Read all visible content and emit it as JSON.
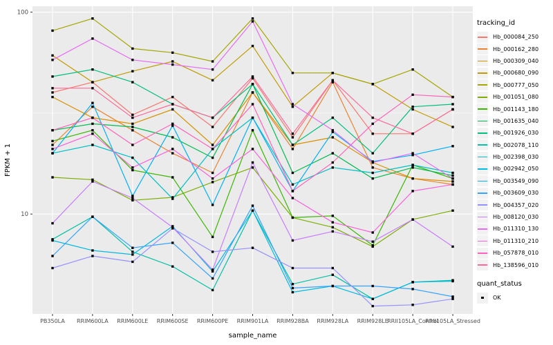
{
  "window": {
    "background": "#FFFFFF"
  },
  "axes": {
    "y_label": "FPKM + 1",
    "x_label": "sample_name",
    "y_tick_labels": [
      "100",
      "10"
    ]
  },
  "legend": {
    "tracking_title": "tracking_id",
    "quant_title": "quant_status",
    "quant_items": [
      {
        "label": "OK",
        "symbol": "black-square-point"
      }
    ]
  },
  "style": {
    "panel_bg": "#EBEBEB",
    "grid_color": "#FFFFFF",
    "tick_text_color": "#4D4D4D",
    "axis_title_color": "#000000",
    "point_color": "#000000",
    "legend_key_bg": "#F2F2F2"
  },
  "chart_data": {
    "type": "line",
    "title": "",
    "xlabel": "sample_name",
    "ylabel": "FPKM + 1",
    "y_scale": "log10",
    "ylim": [
      3.2,
      107
    ],
    "y_major_ticks": [
      10,
      100
    ],
    "y_minor_gridlines": [
      3.162,
      31.62
    ],
    "grid": true,
    "legend_position": "right",
    "point_marker": "small black square (quant_status = OK)",
    "categories": [
      "PB350LA",
      "RRIM600LA",
      "RRIM600LE",
      "RRIM600SE",
      "RRIM600PE",
      "RRIM901LA",
      "RRIM928BA",
      "RRIM928LA",
      "RRIM928LE",
      "RRII105LA_Control",
      "RRII105LA_Stressed"
    ],
    "series": [
      {
        "name": "Hb_000084_250",
        "color": "#F8766D",
        "values": [
          40,
          45,
          31,
          38,
          27,
          47,
          24,
          46,
          25,
          25,
          33
        ]
      },
      {
        "name": "Hb_000162_280",
        "color": "#EA8331",
        "values": [
          22,
          34,
          26,
          20,
          16,
          40,
          21,
          45,
          17,
          15,
          14
        ]
      },
      {
        "name": "Hb_000309_040",
        "color": "#D89000",
        "values": [
          38,
          30,
          28,
          33,
          22,
          40,
          22,
          24,
          18,
          15,
          14.5
        ]
      },
      {
        "name": "Hb_000680_090",
        "color": "#C09B00",
        "values": [
          61,
          45,
          51,
          57,
          46,
          68,
          34,
          50,
          44,
          33,
          27
        ]
      },
      {
        "name": "Hb_000777_050",
        "color": "#A3A500",
        "values": [
          81,
          93,
          66,
          63,
          57,
          93,
          50,
          50,
          44,
          52,
          38
        ]
      },
      {
        "name": "Hb_001051_080",
        "color": "#7CAE00",
        "values": [
          15.2,
          14.8,
          11.7,
          12.1,
          14.4,
          17,
          9.6,
          8.6,
          6.9,
          9.4,
          10.4
        ]
      },
      {
        "name": "Hb_001143_180",
        "color": "#39B600",
        "values": [
          23,
          26,
          16.5,
          15.2,
          7.7,
          26,
          9.6,
          9.8,
          7,
          17.5,
          15
        ]
      },
      {
        "name": "Hb_001635_040",
        "color": "#00BB4E",
        "values": [
          26,
          28,
          27,
          24,
          19,
          44,
          16,
          20,
          15,
          17,
          15.5
        ]
      },
      {
        "name": "Hb_001926_030",
        "color": "#00BF7D",
        "values": [
          48,
          52,
          45,
          35,
          30,
          44,
          22,
          30,
          20,
          34,
          35
        ]
      },
      {
        "name": "Hb_002078_110",
        "color": "#00C1A3",
        "values": [
          7.5,
          9.7,
          6.5,
          5.5,
          4.2,
          10.4,
          4.5,
          5,
          3.8,
          4.6,
          4.7
        ]
      },
      {
        "name": "Hb_002398_030",
        "color": "#00BFC4",
        "values": [
          20,
          22,
          19,
          11.9,
          21,
          30,
          14,
          17,
          16,
          17.5,
          16
        ]
      },
      {
        "name": "Hb_002942_050",
        "color": "#00BAE0",
        "values": [
          7.4,
          6.6,
          6.3,
          8.7,
          5.2,
          10.4,
          4.1,
          4.4,
          3.8,
          4.6,
          4.65
        ]
      },
      {
        "name": "Hb_003549_090",
        "color": "#00B0F6",
        "values": [
          20,
          35.5,
          12.3,
          27.4,
          11.1,
          30,
          13,
          25.5,
          18.2,
          19.6,
          21.7
        ]
      },
      {
        "name": "Hb_003609_030",
        "color": "#35A2FF",
        "values": [
          6.2,
          9.7,
          6.8,
          7.2,
          4.8,
          11,
          4.3,
          4.4,
          4.4,
          4.25,
          3.9
        ]
      },
      {
        "name": "Hb_004357_020",
        "color": "#9590FF",
        "values": [
          5.4,
          6.2,
          5.8,
          8.5,
          6.5,
          6.8,
          5.4,
          5.4,
          3.5,
          3.55,
          3.8
        ]
      },
      {
        "name": "Hb_008120_030",
        "color": "#C77CFF",
        "values": [
          9,
          14.5,
          12,
          8.6,
          5.3,
          18,
          7.4,
          8.2,
          7.3,
          9.4,
          6.9
        ]
      },
      {
        "name": "Hb_011310_130",
        "color": "#E76BF3",
        "values": [
          58,
          74,
          58,
          55,
          52,
          90,
          35,
          26,
          18,
          20,
          15
        ]
      },
      {
        "name": "Hb_011310_210",
        "color": "#FA62DB",
        "values": [
          21,
          25,
          17,
          21,
          15,
          21,
          12,
          9.1,
          8.1,
          13,
          14
        ]
      },
      {
        "name": "Hb_057878_010",
        "color": "#FF62BC",
        "values": [
          26,
          30,
          22,
          28,
          21,
          35,
          13,
          18,
          28,
          39,
          38
        ]
      },
      {
        "name": "Hb_138596_010",
        "color": "#FF6A98",
        "values": [
          42,
          42,
          30,
          35,
          30,
          48,
          25,
          46,
          30,
          25,
          33
        ]
      }
    ]
  }
}
